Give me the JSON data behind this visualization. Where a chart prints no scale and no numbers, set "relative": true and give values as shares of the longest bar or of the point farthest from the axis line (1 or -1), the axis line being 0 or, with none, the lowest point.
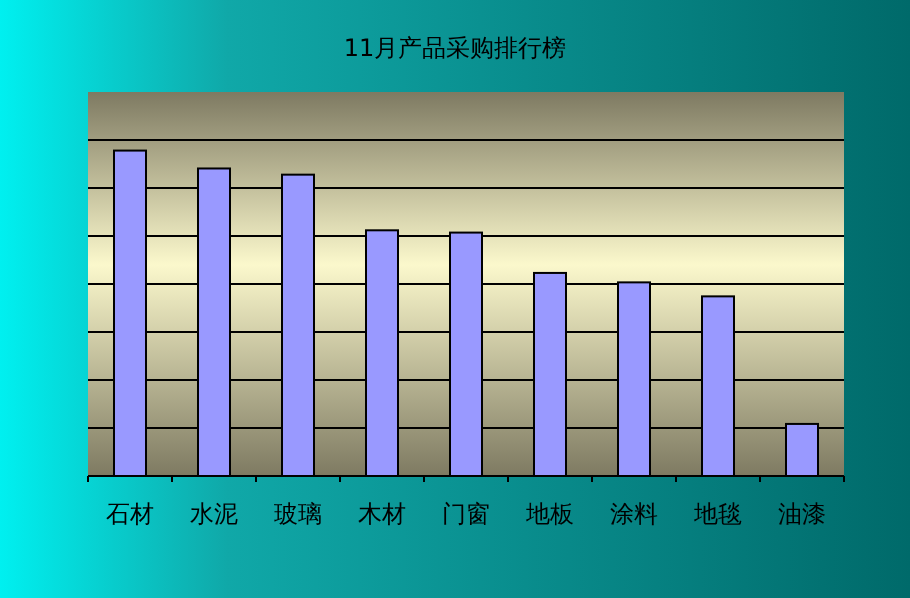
{
  "chart_data": {
    "type": "bar",
    "title": "11月产品采购排行榜",
    "relative": true,
    "grid": "y",
    "color": "#9999ff",
    "categories": [
      "石材",
      "水泥",
      "玻璃",
      "木材",
      "门窗",
      "地板",
      "涂料",
      "地毯",
      "油漆"
    ],
    "values": [
      1,
      0.945,
      0.926,
      0.755,
      0.748,
      0.624,
      0.595,
      0.552,
      0.16
    ]
  }
}
